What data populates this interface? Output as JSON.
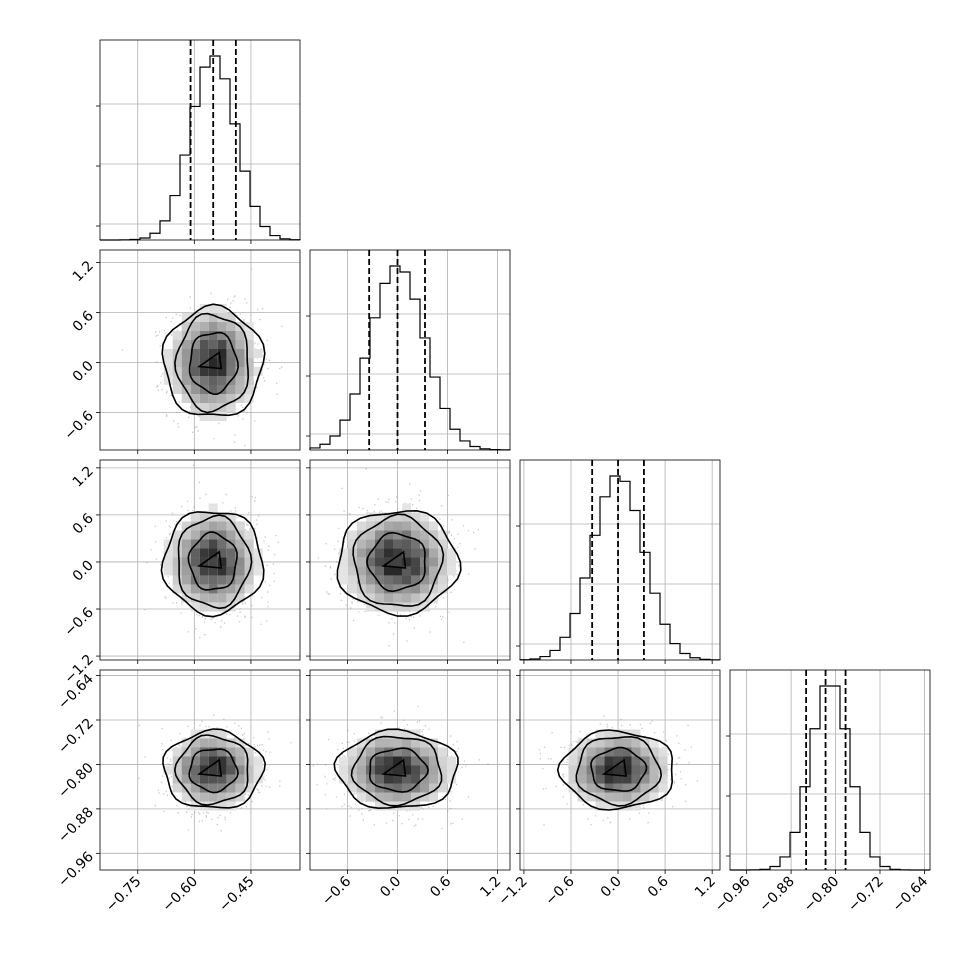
{
  "chart_data": {
    "type": "corner",
    "parameters": [
      {
        "mean": -0.55,
        "std": 0.06,
        "range": [
          -0.85,
          -0.32
        ],
        "ticks": [
          "−0.75",
          "−0.60",
          "−0.45"
        ],
        "tick_values": [
          -0.75,
          -0.6,
          -0.45
        ],
        "quantiles": [
          -0.61,
          -0.55,
          -0.49
        ],
        "hist_ticks": [
          "",
          "",
          ""
        ]
      },
      {
        "mean": 0.0,
        "std": 0.33,
        "range": [
          -1.05,
          1.35
        ],
        "ticks": [
          "−0.6",
          "0.0",
          "0.6",
          "1.2"
        ],
        "tick_values": [
          -0.6,
          0.0,
          0.6,
          1.2
        ],
        "quantiles": [
          -0.34,
          0.0,
          0.33
        ],
        "hist_ticks": [
          "",
          "",
          ""
        ]
      },
      {
        "mean": 0.0,
        "std": 0.33,
        "range": [
          -1.25,
          1.3
        ],
        "ticks": [
          "−1.2",
          "−0.6",
          "0.0",
          "0.6",
          "1.2"
        ],
        "tick_values": [
          -1.2,
          -0.6,
          0.0,
          0.6,
          1.2
        ],
        "quantiles": [
          -0.33,
          0.0,
          0.33
        ],
        "hist_ticks": [
          "",
          "",
          ""
        ]
      },
      {
        "mean": -0.81,
        "std": 0.035,
        "range": [
          -0.99,
          -0.63
        ],
        "ticks": [
          "−0.96",
          "−0.88",
          "−0.80",
          "−0.72",
          "−0.64"
        ],
        "tick_values": [
          -0.96,
          -0.88,
          -0.8,
          -0.72,
          -0.64
        ],
        "quantiles": [
          -0.853,
          -0.818,
          -0.782
        ],
        "hist_ticks": [
          "",
          "",
          ""
        ]
      }
    ],
    "row_tick_labels": [
      [],
      [
        "1.2",
        "0.6",
        "0.0",
        "−0.6"
      ],
      [
        "1.2",
        "0.6",
        "0.0",
        "−0.6",
        "−1.2"
      ],
      [
        "−0.64",
        "−0.72",
        "−0.80",
        "−0.88",
        "−0.96"
      ]
    ],
    "title": "",
    "xlabel": "",
    "ylabel": "",
    "grid": true,
    "colors": {
      "line": "#000000",
      "points": "#9a9a9a",
      "grid": "#b0b0b0"
    }
  }
}
